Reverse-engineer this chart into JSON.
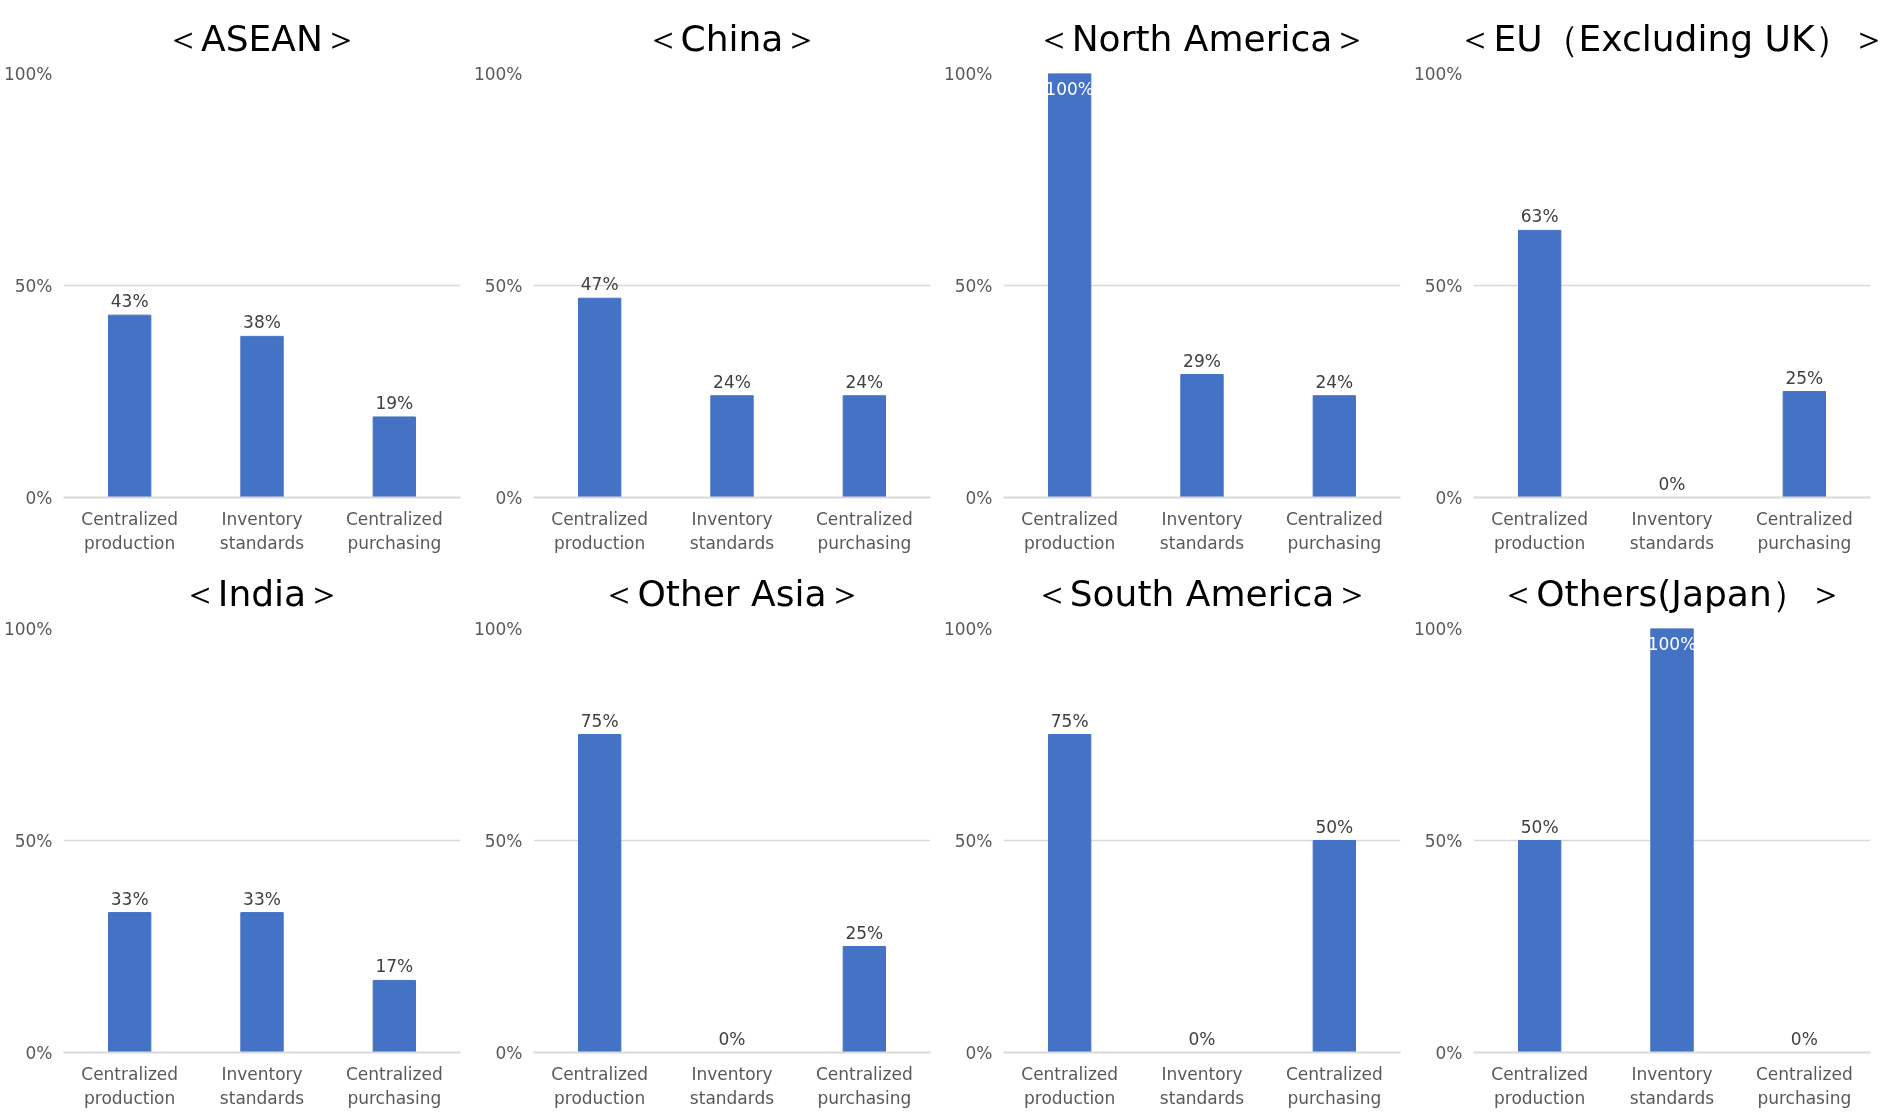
{
  "chart_data": [
    {
      "type": "bar",
      "title": "＜ASEAN＞",
      "categories": [
        "Centralized production",
        "Inventory standards",
        "Centralized purchasing"
      ],
      "values": [
        43,
        38,
        19
      ],
      "value_labels": [
        "43%",
        "38%",
        "19%"
      ],
      "color": "#4472c4",
      "ylim": [
        0,
        100
      ],
      "yticks": [
        {
          "value": 0,
          "label": "0%"
        },
        {
          "value": 50,
          "label": "50%"
        },
        {
          "value": 100,
          "label": "100%"
        }
      ],
      "grid": "y"
    },
    {
      "type": "bar",
      "title": "＜China＞",
      "categories": [
        "Centralized production",
        "Inventory standards",
        "Centralized purchasing"
      ],
      "values": [
        47,
        24,
        24
      ],
      "value_labels": [
        "47%",
        "24%",
        "24%"
      ],
      "color": "#4472c4",
      "ylim": [
        0,
        100
      ],
      "yticks": [
        {
          "value": 0,
          "label": "0%"
        },
        {
          "value": 50,
          "label": "50%"
        },
        {
          "value": 100,
          "label": "100%"
        }
      ],
      "grid": "y"
    },
    {
      "type": "bar",
      "title": "＜North America＞",
      "categories": [
        "Centralized production",
        "Inventory standards",
        "Centralized purchasing"
      ],
      "values": [
        100,
        29,
        24
      ],
      "value_labels": [
        "100%",
        "29%",
        "24%"
      ],
      "color": "#4472c4",
      "ylim": [
        0,
        100
      ],
      "yticks": [
        {
          "value": 0,
          "label": "0%"
        },
        {
          "value": 50,
          "label": "50%"
        },
        {
          "value": 100,
          "label": "100%"
        }
      ],
      "grid": "y"
    },
    {
      "type": "bar",
      "title": "＜EU（Excluding UK）＞",
      "categories": [
        "Centralized production",
        "Inventory standards",
        "Centralized purchasing"
      ],
      "values": [
        63,
        0,
        25
      ],
      "value_labels": [
        "63%",
        "0%",
        "25%"
      ],
      "color": "#4472c4",
      "ylim": [
        0,
        100
      ],
      "yticks": [
        {
          "value": 0,
          "label": "0%"
        },
        {
          "value": 50,
          "label": "50%"
        },
        {
          "value": 100,
          "label": "100%"
        }
      ],
      "grid": "y"
    },
    {
      "type": "bar",
      "title": "＜India＞",
      "categories": [
        "Centralized production",
        "Inventory standards",
        "Centralized purchasing"
      ],
      "values": [
        33,
        33,
        17
      ],
      "value_labels": [
        "33%",
        "33%",
        "17%"
      ],
      "color": "#4472c4",
      "ylim": [
        0,
        100
      ],
      "yticks": [
        {
          "value": 0,
          "label": "0%"
        },
        {
          "value": 50,
          "label": "50%"
        },
        {
          "value": 100,
          "label": "100%"
        }
      ],
      "grid": "y"
    },
    {
      "type": "bar",
      "title": "＜Other Asia＞",
      "categories": [
        "Centralized production",
        "Inventory standards",
        "Centralized purchasing"
      ],
      "values": [
        75,
        0,
        25
      ],
      "value_labels": [
        "75%",
        "0%",
        "25%"
      ],
      "color": "#4472c4",
      "ylim": [
        0,
        100
      ],
      "yticks": [
        {
          "value": 0,
          "label": "0%"
        },
        {
          "value": 50,
          "label": "50%"
        },
        {
          "value": 100,
          "label": "100%"
        }
      ],
      "grid": "y"
    },
    {
      "type": "bar",
      "title": "＜South America＞",
      "categories": [
        "Centralized production",
        "Inventory standards",
        "Centralized purchasing"
      ],
      "values": [
        75,
        0,
        50
      ],
      "value_labels": [
        "75%",
        "0%",
        "50%"
      ],
      "color": "#4472c4",
      "ylim": [
        0,
        100
      ],
      "yticks": [
        {
          "value": 0,
          "label": "0%"
        },
        {
          "value": 50,
          "label": "50%"
        },
        {
          "value": 100,
          "label": "100%"
        }
      ],
      "grid": "y"
    },
    {
      "type": "bar",
      "title": "＜Others(Japan）＞",
      "categories": [
        "Centralized production",
        "Inventory standards",
        "Centralized purchasing"
      ],
      "values": [
        50,
        100,
        0
      ],
      "value_labels": [
        "50%",
        "100%",
        "0%"
      ],
      "color": "#4472c4",
      "ylim": [
        0,
        100
      ],
      "yticks": [
        {
          "value": 0,
          "label": "0%"
        },
        {
          "value": 50,
          "label": "50%"
        },
        {
          "value": 100,
          "label": "100%"
        }
      ],
      "grid": "y"
    }
  ]
}
